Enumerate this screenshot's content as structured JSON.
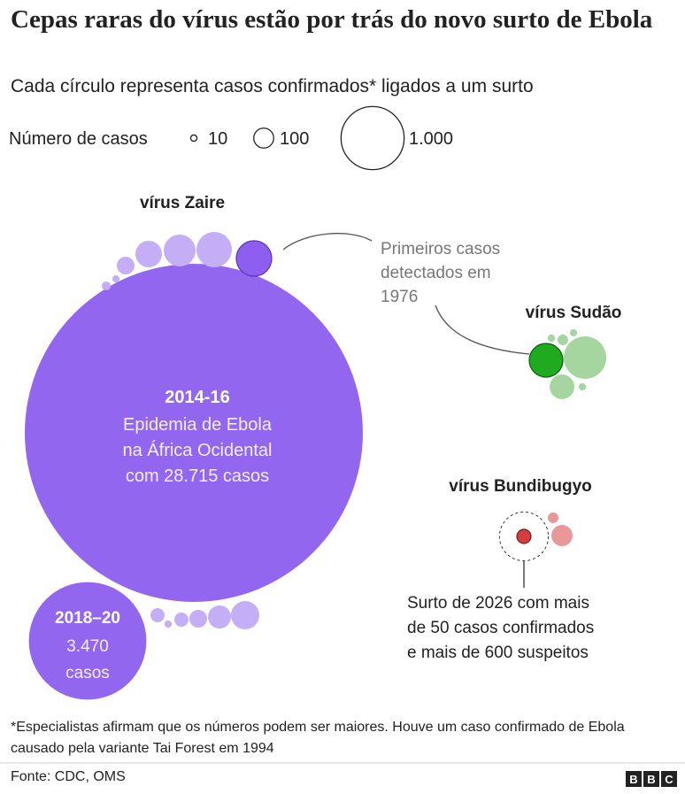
{
  "header": {
    "title": "Cepas raras do vírus estão por trás do novo surto de Ebola",
    "subtitle": "Cada círculo representa casos confirmados* ligados a um surto"
  },
  "legend": {
    "label": "Número de casos",
    "sizes": [
      10,
      100,
      {
        "value": 1000,
        "label": "1.000"
      }
    ]
  },
  "groups": [
    {
      "name": "vírus Zaire",
      "outbreaks": [
        {
          "cases": 28715,
          "color": "#9366f0",
          "label": "2014-16",
          "text": [
            "Epidemia de Ebola",
            "na África Ocidental",
            "com 28.715 casos"
          ]
        },
        {
          "cases": 3470,
          "color": "#9366f0",
          "label": "2018–20",
          "text": [
            "3.470",
            "casos"
          ]
        },
        {
          "cases": 315,
          "color": "#8d5ef0"
        },
        {
          "cases": 315,
          "color": "#c4aef6"
        },
        {
          "cases": 255,
          "color": "#c4aef6"
        },
        {
          "cases": 177,
          "color": "#c4aef6"
        },
        {
          "cases": 79,
          "color": "#c4aef6"
        },
        {
          "cases": 13,
          "color": "#c4aef6"
        },
        {
          "cases": 20,
          "color": "#c4aef6"
        },
        {
          "cases": 202,
          "color": "#c4aef6"
        },
        {
          "cases": 133,
          "color": "#c4aef6"
        },
        {
          "cases": 79,
          "color": "#c4aef6"
        },
        {
          "cases": 50,
          "color": "#c4aef6"
        },
        {
          "cases": 13,
          "color": "#c4aef6"
        },
        {
          "cases": 50,
          "color": "#c4aef6"
        }
      ]
    },
    {
      "name": "vírus Sudão",
      "outbreaks": [
        {
          "cases": 284,
          "color": "#1faa1f"
        },
        {
          "cases": 454,
          "color": "#a5d6a0"
        },
        {
          "cases": 154,
          "color": "#a5d6a0"
        },
        {
          "cases": 28,
          "color": "#a5d6a0"
        },
        {
          "cases": 13,
          "color": "#a5d6a0"
        },
        {
          "cases": 13,
          "color": "#a5d6a0"
        },
        {
          "cases": 13,
          "color": "#a5d6a0"
        }
      ]
    },
    {
      "name": "vírus Bundibugyo",
      "outbreaks": [
        {
          "cases": 50,
          "color": "#d33f3f",
          "suspected": 600
        },
        {
          "cases": 113,
          "color": "#e89898"
        },
        {
          "cases": 28,
          "color": "#e89898"
        }
      ]
    }
  ],
  "annotations": {
    "first_cases": [
      "Primeiros casos",
      "detectados em",
      "1976"
    ],
    "current": [
      "Surto de 2026 com mais",
      "de 50 casos confirmados",
      "e mais de 600 suspeitos"
    ]
  },
  "footnote": "*Especialistas afirmam que os números podem ser maiores. Houve um caso confirmado de Ebola causado pela variante Tai Forest em 1994",
  "source": "Fonte: CDC, OMS",
  "logo": [
    "B",
    "B",
    "C"
  ]
}
